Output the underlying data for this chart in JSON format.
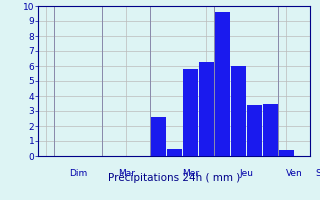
{
  "bar_values": [
    0,
    0,
    0,
    0,
    0,
    0,
    0,
    2.6,
    0.5,
    5.8,
    6.3,
    9.6,
    6.0,
    3.4,
    3.5,
    0.4,
    0
  ],
  "bar_color": "#1a1aee",
  "background_color": "#ddf4f4",
  "grid_color": "#bbbbbb",
  "axis_color": "#000088",
  "xlabel": "Précipitations 24h ( mm )",
  "xlabel_color": "#000088",
  "tick_label_color": "#0000aa",
  "ylim": [
    0,
    10
  ],
  "yticks": [
    0,
    1,
    2,
    3,
    4,
    5,
    6,
    7,
    8,
    9,
    10
  ],
  "day_labels": [
    "Dim",
    "Mar",
    "Mer",
    "Jeu",
    "Ven",
    "S"
  ],
  "day_tick_positions": [
    2.0,
    5.0,
    9.0,
    12.5,
    15.5,
    17.0
  ],
  "day_boundary_positions": [
    0.5,
    3.5,
    6.5,
    10.5,
    14.5,
    16.5
  ],
  "num_bars": 17,
  "bar_width": 0.9
}
